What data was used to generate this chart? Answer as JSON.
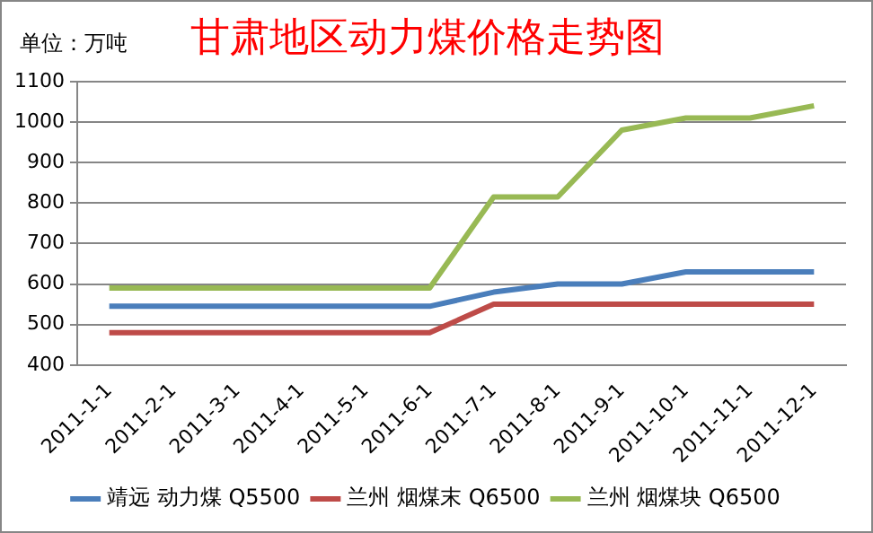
{
  "chart_data": {
    "type": "line",
    "title": "甘肃地区动力煤价格走势图",
    "ylabel": "单位：万吨",
    "categories": [
      "2011-1-1",
      "2011-2-1",
      "2011-3-1",
      "2011-4-1",
      "2011-5-1",
      "2011-6-1",
      "2011-7-1",
      "2011-8-1",
      "2011-9-1",
      "2011-10-1",
      "2011-11-1",
      "2011-12-1"
    ],
    "series": [
      {
        "name": "靖远 动力煤 Q5500",
        "color": "#4a7ebb",
        "values": [
          545,
          545,
          545,
          545,
          545,
          545,
          580,
          600,
          600,
          630,
          630,
          630
        ]
      },
      {
        "name": "兰州 烟煤末 Q6500",
        "color": "#be4b48",
        "values": [
          480,
          480,
          480,
          480,
          480,
          480,
          550,
          550,
          550,
          550,
          550,
          550
        ]
      },
      {
        "name": "兰州 烟煤块 Q6500",
        "color": "#98b954",
        "values": [
          590,
          590,
          590,
          590,
          590,
          590,
          815,
          815,
          980,
          1010,
          1010,
          1040
        ]
      }
    ],
    "ylim": [
      400,
      1100
    ],
    "yticks": [
      400,
      500,
      600,
      700,
      800,
      900,
      1000,
      1100
    ],
    "grid": "y",
    "legend": "bottom",
    "marker": "none",
    "line_style": "solid"
  }
}
